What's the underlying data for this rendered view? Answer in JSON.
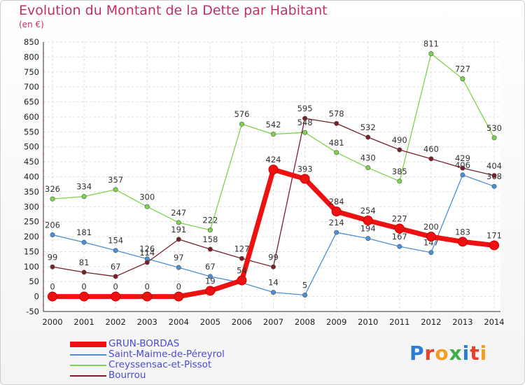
{
  "header": {
    "title": "Evolution du Montant de la Dette par Habitant",
    "subtitle": "(en €)"
  },
  "logo": {
    "text": "Proxiti",
    "colors": [
      "#2a7fd4",
      "#e8402a",
      "#f0a020",
      "#3fae49",
      "#2a7fd4",
      "#e8402a",
      "#f0a020"
    ]
  },
  "chart_data": {
    "type": "line",
    "title": "Evolution du Montant de la Dette par Habitant",
    "ylabel": "(en €)",
    "x": [
      "2000",
      "2001",
      "2002",
      "2003",
      "2004",
      "2005",
      "2006",
      "2007",
      "2008",
      "2009",
      "2010",
      "2011",
      "2012",
      "2013",
      "2014"
    ],
    "ylim": [
      -50,
      850
    ],
    "yticks": [
      -50,
      0,
      50,
      100,
      150,
      200,
      250,
      300,
      350,
      400,
      450,
      500,
      550,
      600,
      650,
      700,
      750,
      800,
      850
    ],
    "grid": true,
    "legend": "bottom",
    "series": [
      {
        "name": "Saint-Maime-de-Péreyrol",
        "color": "#4a8fd8",
        "values": [
          206,
          181,
          154,
          126,
          97,
          67,
          46,
          14,
          5,
          214,
          194,
          167,
          147,
          406,
          368
        ],
        "labels": [
          "206",
          "181",
          "154",
          "126",
          "97",
          "67",
          "",
          "14",
          "5",
          "214",
          "194",
          "167",
          "147",
          "406",
          "368"
        ]
      },
      {
        "name": "Creyssensac-et-Pissot",
        "color": "#7cd44c",
        "values": [
          326,
          334,
          357,
          300,
          247,
          222,
          576,
          542,
          548,
          481,
          430,
          385,
          811,
          727,
          530
        ],
        "labels": [
          "326",
          "334",
          "357",
          "300",
          "247",
          "222",
          "576",
          "542",
          "548",
          "481",
          "430",
          "385",
          "811",
          "727",
          "530"
        ]
      },
      {
        "name": "Bourrou",
        "color": "#7a1f2a",
        "values": [
          99,
          81,
          67,
          114,
          191,
          158,
          127,
          99,
          595,
          578,
          532,
          490,
          460,
          429,
          404
        ],
        "labels": [
          "99",
          "81",
          "67",
          "114",
          "191",
          "158",
          "127",
          "99",
          "595",
          "578",
          "532",
          "490",
          "460",
          "429",
          "404"
        ]
      },
      {
        "name": "GRUN-BORDAS",
        "color": "#ee1111",
        "values": [
          0,
          0,
          0,
          0,
          0,
          19,
          54,
          424,
          393,
          284,
          254,
          227,
          200,
          183,
          171
        ],
        "labels": [
          "0",
          "0",
          "0",
          "0",
          "0",
          "19",
          "54",
          "424",
          "393",
          "284",
          "254",
          "227",
          "200",
          "183",
          "171"
        ]
      }
    ],
    "legend_order": [
      "GRUN-BORDAS",
      "Saint-Maime-de-Péreyrol",
      "Creyssensac-et-Pissot",
      "Bourrou"
    ]
  }
}
